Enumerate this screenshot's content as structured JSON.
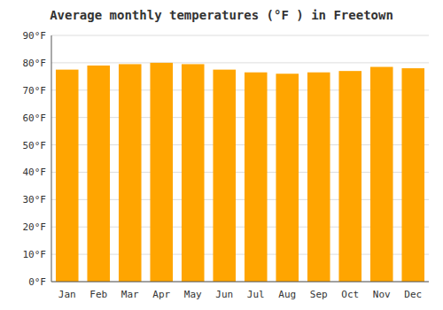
{
  "chart_data": {
    "type": "bar",
    "title": "Average monthly temperatures (°F ) in Freetown",
    "categories": [
      "Jan",
      "Feb",
      "Mar",
      "Apr",
      "May",
      "Jun",
      "Jul",
      "Aug",
      "Sep",
      "Oct",
      "Nov",
      "Dec"
    ],
    "values": [
      77.5,
      79.0,
      79.5,
      80.0,
      79.5,
      77.5,
      76.5,
      76.0,
      76.5,
      77.0,
      78.5,
      78.0
    ],
    "color": "#FFA500",
    "ylim": [
      0,
      90
    ],
    "yticks": [
      {
        "value": 0,
        "label": "0°F"
      },
      {
        "value": 10,
        "label": "10°F"
      },
      {
        "value": 20,
        "label": "20°F"
      },
      {
        "value": 30,
        "label": "30°F"
      },
      {
        "value": 40,
        "label": "40°F"
      },
      {
        "value": 50,
        "label": "50°F"
      },
      {
        "value": 60,
        "label": "60°F"
      },
      {
        "value": 70,
        "label": "70°F"
      },
      {
        "value": 80,
        "label": "80°F"
      },
      {
        "value": 90,
        "label": "90°F"
      }
    ],
    "grid": true
  }
}
